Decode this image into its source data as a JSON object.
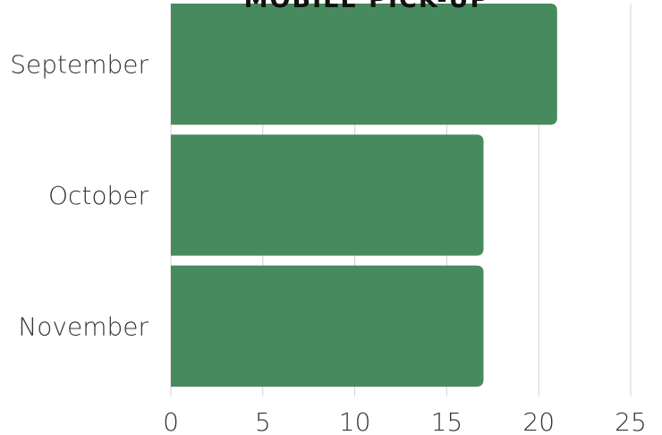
{
  "chart_data": {
    "type": "bar",
    "orientation": "horizontal",
    "title": "MOBILE PICK-UP",
    "categories": [
      "September",
      "October",
      "November"
    ],
    "series": [
      {
        "values": [
          21,
          17,
          17
        ]
      }
    ],
    "xlim": [
      0,
      25
    ],
    "x_ticks": [
      "0",
      "5",
      "10",
      "15",
      "20",
      "25"
    ],
    "grid": true,
    "bar_color": "#478a5e",
    "grid_color": "#d0d0d0"
  }
}
